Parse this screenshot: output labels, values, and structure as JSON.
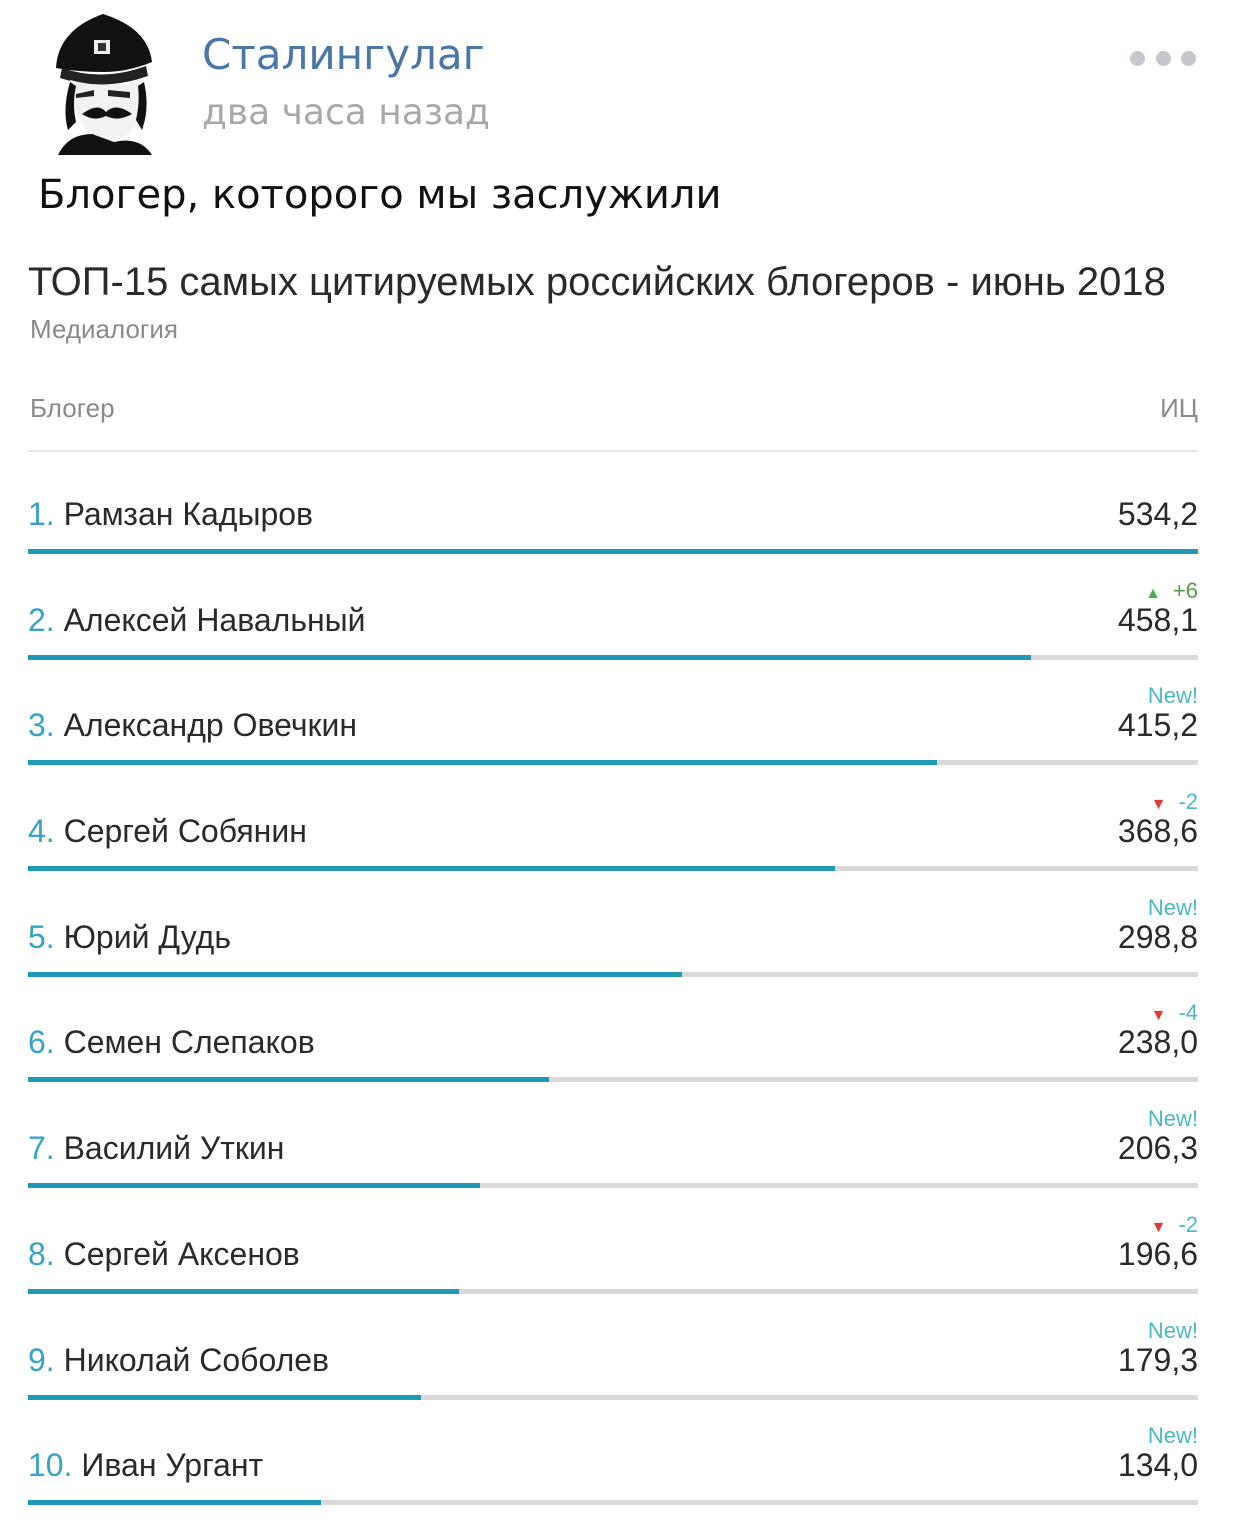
{
  "post": {
    "author": "Сталингулаг",
    "time": "два часа назад",
    "text": "Блогер, которого мы заслужили"
  },
  "infographic": {
    "title": "ТОП-15 самых цитируемых российских блогеров - июнь 2018",
    "source": "Медиалогия",
    "col_blogger": "Блогер",
    "col_ic": "ИЦ"
  },
  "colors": {
    "author_link": "#4a76a8",
    "bar_fill": "#1e9ab5",
    "bar_track": "#d9d9d9",
    "rank_number": "#36a3c7",
    "change_up_arrow": "#4caf50",
    "change_down_arrow": "#e03a3a"
  },
  "chart_data": {
    "type": "bar",
    "orientation": "horizontal",
    "xlim": [
      0,
      534.2
    ],
    "categories": [
      "Рамзан Кадыров",
      "Алексей Навальный",
      "Александр Овечкин",
      "Сергей Собянин",
      "Юрий Дудь",
      "Семен Слепаков",
      "Василий Уткин",
      "Сергей Аксенов",
      "Николай Соболев",
      "Иван Ургант"
    ],
    "rows": [
      {
        "rank": "1.",
        "name": "Рамзан Кадыров",
        "value": "534,2",
        "change": "",
        "change_type": "none",
        "fraction": 1.0
      },
      {
        "rank": "2.",
        "name": "Алексей Навальный",
        "value": "458,1",
        "change": "+6",
        "change_type": "up",
        "fraction": 0.8575
      },
      {
        "rank": "3.",
        "name": "Александр Овечкин",
        "value": "415,2",
        "change": "New!",
        "change_type": "new",
        "fraction": 0.7772
      },
      {
        "rank": "4.",
        "name": "Сергей Собянин",
        "value": "368,6",
        "change": "-2",
        "change_type": "down",
        "fraction": 0.69
      },
      {
        "rank": "5.",
        "name": "Юрий Дудь",
        "value": "298,8",
        "change": "New!",
        "change_type": "new",
        "fraction": 0.5593
      },
      {
        "rank": "6.",
        "name": "Семен Слепаков",
        "value": "238,0",
        "change": "-4",
        "change_type": "down",
        "fraction": 0.4455
      },
      {
        "rank": "7.",
        "name": "Василий Уткин",
        "value": "206,3",
        "change": "New!",
        "change_type": "new",
        "fraction": 0.3862
      },
      {
        "rank": "8.",
        "name": "Сергей Аксенов",
        "value": "196,6",
        "change": "-2",
        "change_type": "down",
        "fraction": 0.368
      },
      {
        "rank": "9.",
        "name": "Николай Соболев",
        "value": "179,3",
        "change": "New!",
        "change_type": "new",
        "fraction": 0.3356
      },
      {
        "rank": "10.",
        "name": "Иван Ургант",
        "value": "134,0",
        "change": "New!",
        "change_type": "new",
        "fraction": 0.2508
      }
    ]
  }
}
